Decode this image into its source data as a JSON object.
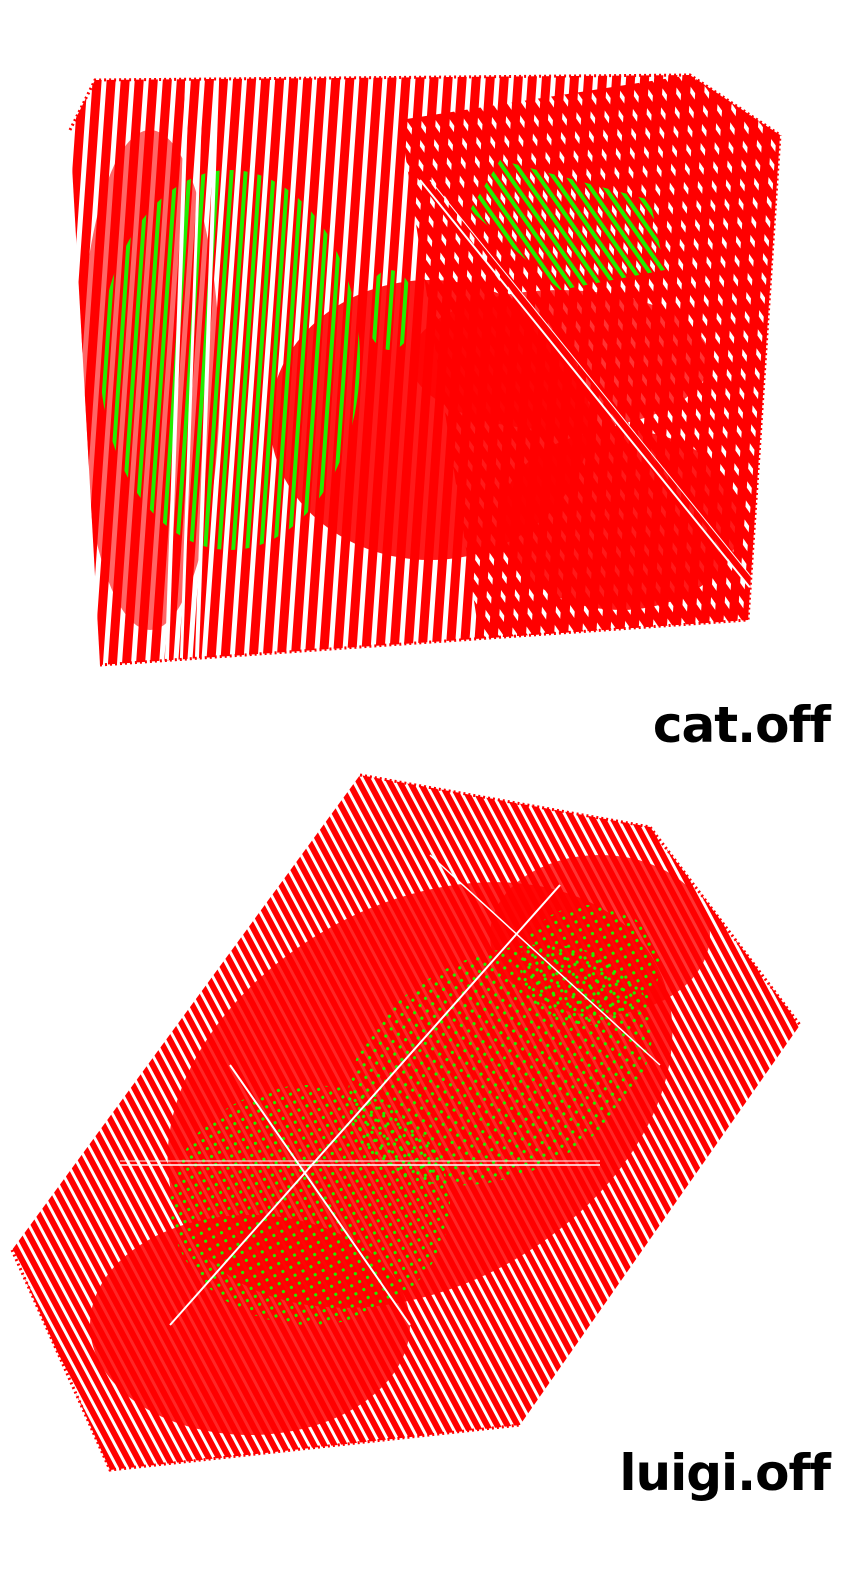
{
  "colors": {
    "point_outside": "#ff0000",
    "point_inside": "#22ee00",
    "background": "#ffffff"
  },
  "panels": [
    {
      "caption": "cat.off",
      "shape": "box"
    },
    {
      "caption": "luigi.off",
      "shape": "rotated-prism"
    }
  ]
}
